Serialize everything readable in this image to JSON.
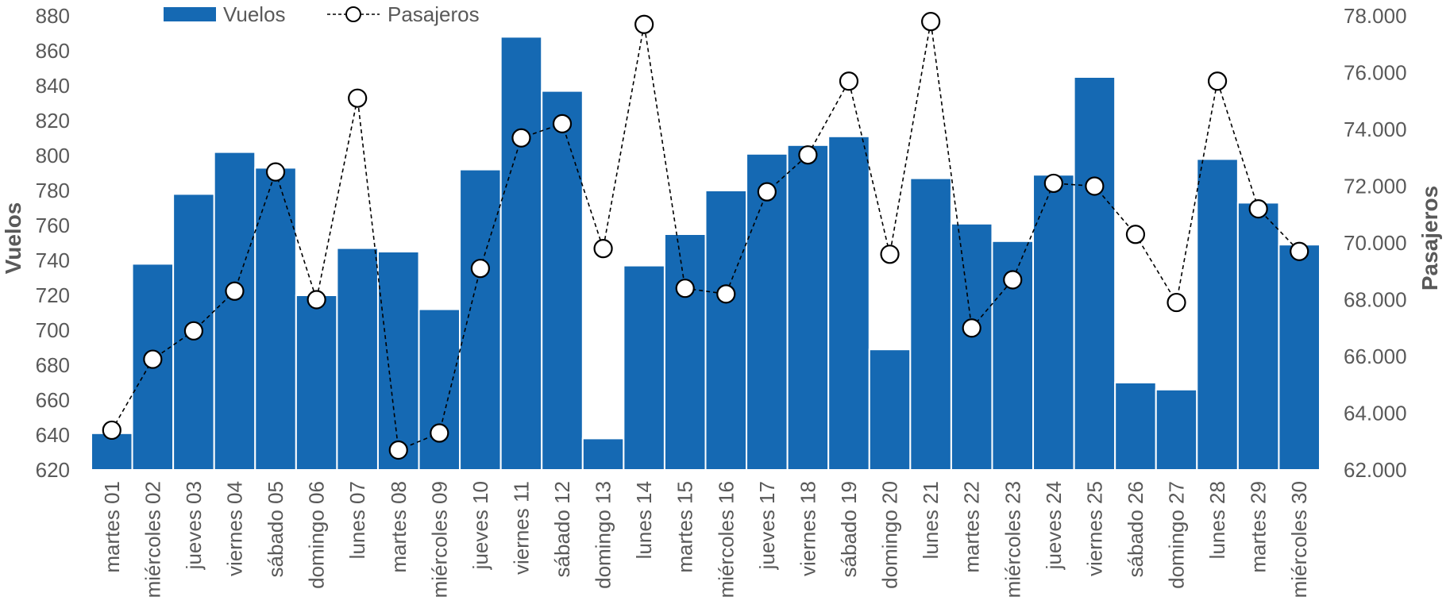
{
  "chart_data": {
    "type": "bar",
    "categories": [
      "martes 01",
      "miércoles 02",
      "jueves 03",
      "viernes 04",
      "sábado 05",
      "domingo 06",
      "lunes 07",
      "martes 08",
      "miércoles 09",
      "jueves 10",
      "viernes 11",
      "sábado 12",
      "domingo 13",
      "lunes 14",
      "martes 15",
      "miércoles 16",
      "jueves 17",
      "viernes 18",
      "sábado 19",
      "domingo 20",
      "lunes 21",
      "martes 22",
      "miércoles 23",
      "jueves 24",
      "viernes 25",
      "sábado 26",
      "domingo 27",
      "lunes 28",
      "martes 29",
      "miércoles 30"
    ],
    "series": [
      {
        "name": "Vuelos",
        "type": "bar",
        "axis": "left",
        "color": "#1569b3",
        "values": [
          641,
          738,
          778,
          802,
          793,
          720,
          747,
          745,
          712,
          792,
          868,
          837,
          638,
          737,
          755,
          780,
          801,
          806,
          811,
          689,
          787,
          761,
          751,
          789,
          845,
          670,
          666,
          798,
          773,
          749
        ]
      },
      {
        "name": "Pasajeros",
        "type": "line",
        "axis": "right",
        "color": "#000000",
        "values": [
          63400,
          65900,
          66900,
          68300,
          72500,
          68000,
          75100,
          62700,
          63300,
          69100,
          73700,
          74200,
          69800,
          77700,
          68400,
          68200,
          71800,
          73100,
          75700,
          69600,
          77800,
          67000,
          68700,
          72100,
          72000,
          70300,
          67900,
          75700,
          71200,
          69700
        ]
      }
    ],
    "ylabel": "Vuelos",
    "y2label": "Pasajeros",
    "ylim": [
      620,
      880
    ],
    "y2lim": [
      62000,
      78000
    ],
    "yticks": [
      "620",
      "640",
      "660",
      "680",
      "700",
      "720",
      "740",
      "760",
      "780",
      "800",
      "820",
      "840",
      "860",
      "880"
    ],
    "y2ticks": [
      "62.000",
      "64.000",
      "66.000",
      "68.000",
      "70.000",
      "72.000",
      "74.000",
      "76.000",
      "78.000"
    ],
    "legend": "top-left",
    "grid": false
  }
}
